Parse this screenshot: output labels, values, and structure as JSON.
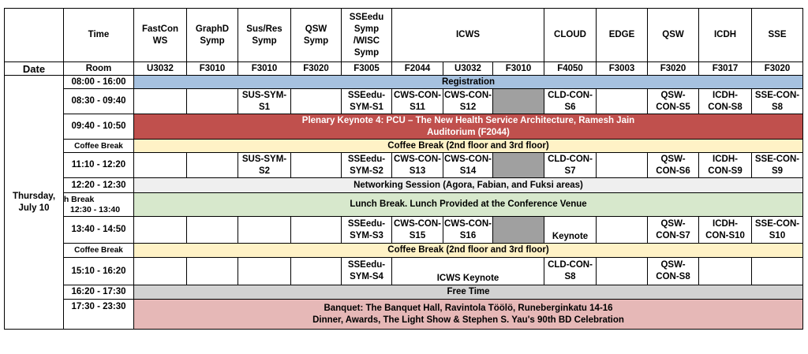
{
  "header": {
    "date_label": "Date",
    "time_label": "Time",
    "room_label": "Room",
    "tracks": [
      {
        "lines": [
          "FastCon",
          "WS"
        ],
        "room": "U3032"
      },
      {
        "lines": [
          "GraphD",
          "Symp"
        ],
        "room": "F3010"
      },
      {
        "lines": [
          "Sus/Res",
          "Symp"
        ],
        "room": "F3010"
      },
      {
        "lines": [
          "QSW",
          "Symp"
        ],
        "room": "F3020"
      },
      {
        "lines": [
          "SSEedu",
          "Symp",
          "/WISC",
          "Symp"
        ],
        "room": "F3005"
      },
      {
        "lines": [
          "ICWS"
        ],
        "rooms": [
          "F2044",
          "U3032",
          "F3010"
        ]
      },
      {
        "lines": [
          "CLOUD"
        ],
        "room": "F4050"
      },
      {
        "lines": [
          "EDGE"
        ],
        "room": "F3003"
      },
      {
        "lines": [
          "QSW"
        ],
        "room": "F3020"
      },
      {
        "lines": [
          "ICDH"
        ],
        "room": "F3017"
      },
      {
        "lines": [
          "SSE"
        ],
        "room": "F3020"
      }
    ]
  },
  "date": {
    "line1": "Thursday,",
    "line2": "July 10"
  },
  "rows": {
    "registration": {
      "time": "08:00 - 16:00",
      "text": "Registration"
    },
    "s1": {
      "time": "08:30 - 09:40",
      "sus": [
        "SUS-SYM-",
        "S1"
      ],
      "sse": [
        "SSEedu-",
        "SYM-S1"
      ],
      "icws1": [
        "CWS-CON-",
        "S11"
      ],
      "icws2": [
        "CWS-CON-",
        "S12"
      ],
      "cloud": [
        "CLD-CON-",
        "S6"
      ],
      "qsw": [
        "QSW-",
        "CON-S5"
      ],
      "icdh": [
        "ICDH-",
        "CON-S8"
      ],
      "sseconf": [
        "SSE-CON-",
        "S8"
      ]
    },
    "keynote": {
      "time": "09:40 - 10:50",
      "line1": "Plenary Keynote 4: PCU – The New Health Service Architecture, Ramesh Jain",
      "line2": "Auditorium (F2044)"
    },
    "coffee1": {
      "time": "Coffee Break",
      "text": "Coffee Break (2nd floor and 3rd floor)"
    },
    "s2": {
      "time": "11:10 - 12:20",
      "sus": [
        "SUS-SYM-",
        "S2"
      ],
      "sse": [
        "SSEedu-",
        "SYM-S2"
      ],
      "icws1": [
        "CWS-CON-",
        "S13"
      ],
      "icws2": [
        "CWS-CON-",
        "S14"
      ],
      "cloud": [
        "CLD-CON-",
        "S7"
      ],
      "qsw": [
        "QSW-",
        "CON-S6"
      ],
      "icdh": [
        "ICDH-",
        "CON-S9"
      ],
      "sseconf": [
        "SSE-CON-",
        "S9"
      ]
    },
    "networking": {
      "time": "12:20 - 12:30",
      "text": "Networking Session (Agora, Fabian, and Fuksi areas)"
    },
    "lunch": {
      "label": "ch Break",
      "time": "12:30 - 13:40",
      "text": "Lunch Break. Lunch Provided at the Conference Venue"
    },
    "s3": {
      "time": "13:40 - 14:50",
      "sse": [
        "SSEedu-",
        "SYM-S3"
      ],
      "icws1": [
        "CWS-CON-",
        "S15"
      ],
      "icws2": [
        "CWS-CON-",
        "S16"
      ],
      "cloud": "Keynote",
      "qsw": [
        "QSW-",
        "CON-S7"
      ],
      "icdh": [
        "ICDH-",
        "CON-S10"
      ],
      "sseconf": [
        "SSE-CON-",
        "S10"
      ]
    },
    "coffee2": {
      "time": "Coffee Break",
      "text": "Coffee Break (2nd floor and 3rd floor)"
    },
    "s4": {
      "time": "15:10 - 16:20",
      "sse": [
        "SSEedu-",
        "SYM-S4"
      ],
      "icws": "ICWS Keynote",
      "cloud": [
        "CLD-CON-",
        "S8"
      ],
      "qsw": [
        "QSW-",
        "CON-S8"
      ]
    },
    "free": {
      "time": "16:20 - 17:30",
      "text": "Free Time"
    },
    "banquet": {
      "time": "17:30 - 23:30",
      "line1": "Banquet: The Banquet Hall, Ravintola Töölö, Runeberginkatu 14-16",
      "line2": "Dinner, Awards, The Light Show & Stephen S. Yau's 90th BD Celebration"
    }
  },
  "colors": {
    "registration": "#a6c1df",
    "keynote": "#c0504d",
    "coffee": "#fff2c6",
    "networking": "#efefef",
    "lunch": "#d7e8cc",
    "free": "#d2d2d2",
    "banquet": "#e6b8b7",
    "empty_slot": "#a0a0a0"
  }
}
